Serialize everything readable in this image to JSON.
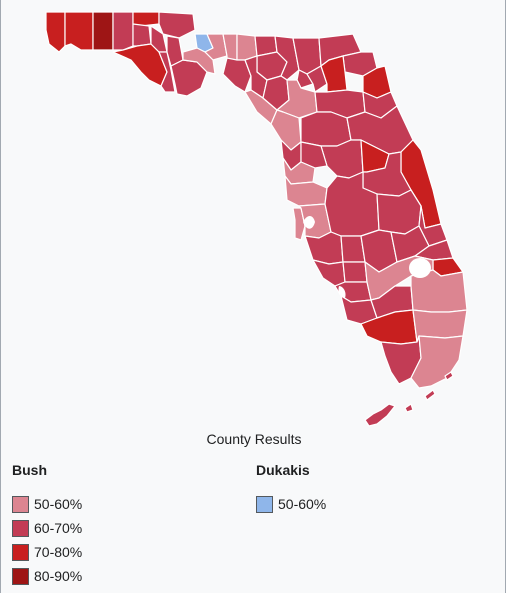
{
  "map": {
    "caption": "County Results",
    "colors": {
      "bush_50_60": "#dc8591",
      "bush_60_70": "#c23c55",
      "bush_70_80": "#c81f1f",
      "bush_80_90": "#9e1515",
      "dukakis_50_60": "#8fb6ea"
    }
  },
  "legend": {
    "bush": {
      "title": "Bush",
      "items": [
        {
          "label": "50-60%",
          "color": "#dc8591"
        },
        {
          "label": "60-70%",
          "color": "#c23c55"
        },
        {
          "label": "70-80%",
          "color": "#c81f1f"
        },
        {
          "label": "80-90%",
          "color": "#9e1515"
        }
      ]
    },
    "dukakis": {
      "title": "Dukakis",
      "items": [
        {
          "label": "50-60%",
          "color": "#8fb6ea"
        }
      ]
    }
  }
}
